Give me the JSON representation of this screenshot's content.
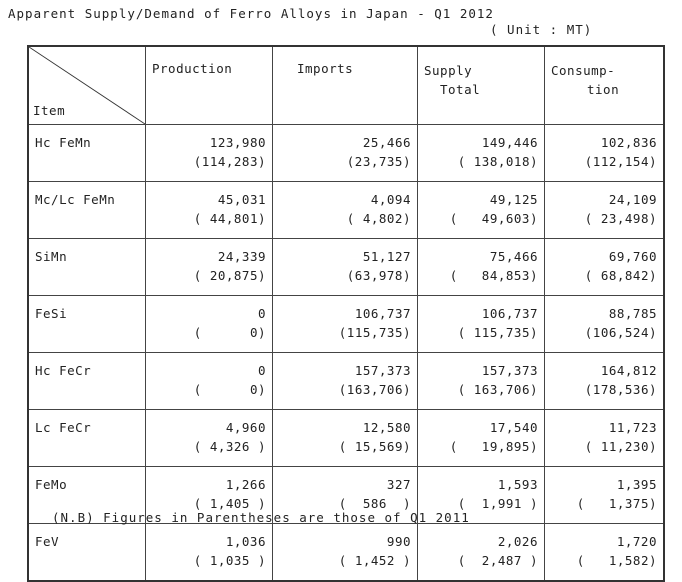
{
  "title": "Apparent Supply/Demand of Ferro Alloys in Japan - Q1 2012",
  "unit": "( Unit : MT)",
  "headers": {
    "item": "Item",
    "production": "Production",
    "imports": "Imports",
    "supply_1": "Supply",
    "supply_2": "Total",
    "consumption_1": "Consump-",
    "consumption_2": "tion"
  },
  "rows": [
    {
      "item": "Hc FeMn",
      "production": "123,980",
      "production_prev": "(114,283)",
      "imports": "25,466",
      "imports_prev": "(23,735)",
      "supply": "149,446",
      "supply_prev": "( 138,018)",
      "consumption": "102,836",
      "consumption_prev": "(112,154)"
    },
    {
      "item": "Mc/Lc FeMn",
      "production": "45,031",
      "production_prev": "( 44,801)",
      "imports": "4,094",
      "imports_prev": "( 4,802)",
      "supply": "49,125",
      "supply_prev": "(   49,603)",
      "consumption": "24,109",
      "consumption_prev": "( 23,498)"
    },
    {
      "item": "SiMn",
      "production": "24,339",
      "production_prev": "( 20,875)",
      "imports": "51,127",
      "imports_prev": "(63,978)",
      "supply": "75,466",
      "supply_prev": "(   84,853)",
      "consumption": "69,760",
      "consumption_prev": "( 68,842)"
    },
    {
      "item": "FeSi",
      "production": "0",
      "production_prev": "(      0)",
      "imports": "106,737",
      "imports_prev": "(115,735)",
      "supply": "106,737",
      "supply_prev": "( 115,735)",
      "consumption": "88,785",
      "consumption_prev": "(106,524)"
    },
    {
      "item": "Hc FeCr",
      "production": "0",
      "production_prev": "(      0)",
      "imports": "157,373",
      "imports_prev": "(163,706)",
      "supply": "157,373",
      "supply_prev": "( 163,706)",
      "consumption": "164,812",
      "consumption_prev": "(178,536)"
    },
    {
      "item": "Lc FeCr",
      "production": "4,960",
      "production_prev": "( 4,326 )",
      "imports": "12,580",
      "imports_prev": "( 15,569)",
      "supply": "17,540",
      "supply_prev": "(   19,895)",
      "consumption": "11,723",
      "consumption_prev": "( 11,230)"
    },
    {
      "item": "FeMo",
      "production": "1,266",
      "production_prev": "( 1,405 )",
      "imports": "327",
      "imports_prev": "(  586  )",
      "supply": "1,593",
      "supply_prev": "(  1,991 )",
      "consumption": "1,395",
      "consumption_prev": "(   1,375)"
    },
    {
      "item": "FeV",
      "production": "1,036",
      "production_prev": "( 1,035 )",
      "imports": "990",
      "imports_prev": "( 1,452 )",
      "supply": "2,026",
      "supply_prev": "(  2,487 )",
      "consumption": "1,720",
      "consumption_prev": "(   1,582)"
    }
  ],
  "note": "(N.B) Figures in Parentheses are those of Q1 2011"
}
